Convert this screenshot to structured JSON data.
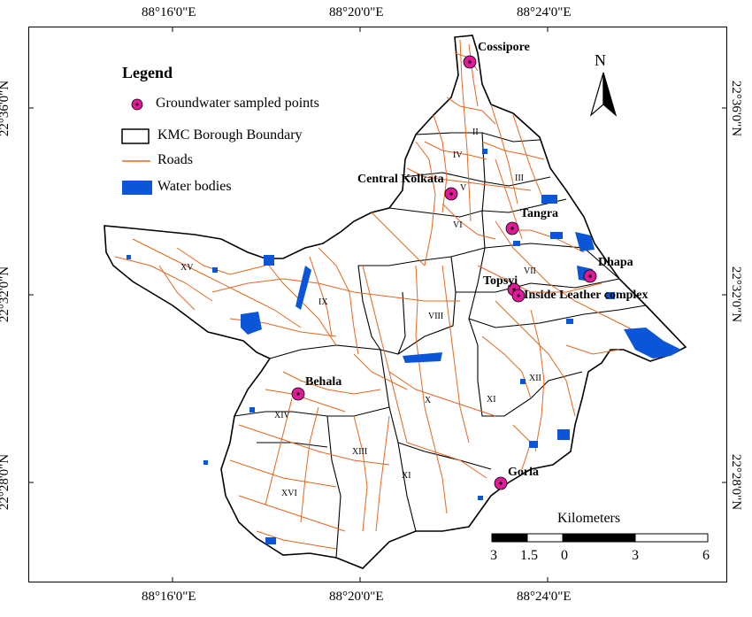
{
  "coords": {
    "top": [
      "88°16'0\"E",
      "88°20'0\"E",
      "88°24'0\"E"
    ],
    "bottom": [
      "88°16'0\"E",
      "88°20'0\"E",
      "88°24'0\"E"
    ],
    "left": [
      "22°36'0\"N",
      "22°32'0\"N",
      "22°28'0\"N"
    ],
    "right": [
      "22°36'0\"N",
      "22°32'0\"N",
      "22°28'0\"N"
    ]
  },
  "legend": {
    "title": "Legend",
    "items": [
      {
        "label": "Groundwater sampled points",
        "symbol": "sample-point"
      },
      {
        "label": "KMC Borough Boundary",
        "symbol": "boundary"
      },
      {
        "label": "Roads",
        "symbol": "road"
      },
      {
        "label": "Water bodies",
        "symbol": "water"
      }
    ]
  },
  "north": "N",
  "sites": [
    {
      "name": "Cossipore"
    },
    {
      "name": "Central Kolkata"
    },
    {
      "name": "Tangra"
    },
    {
      "name": "Dhapa"
    },
    {
      "name": "Topsyi"
    },
    {
      "name": "Inside Leather complex"
    },
    {
      "name": "Behala"
    },
    {
      "name": "Goria"
    }
  ],
  "wards": [
    "II",
    "IV",
    "III",
    "V",
    "VI",
    "VII",
    "VIII",
    "IX",
    "XV",
    "X",
    "XI",
    "XII",
    "XIII",
    "XIV",
    "XVI",
    "XI"
  ],
  "scale": {
    "title": "Kilometers",
    "ticks": [
      "3",
      "1.5",
      "0",
      "3",
      "6"
    ]
  },
  "colors": {
    "roads": "#e5671e",
    "water": "#0b56d8",
    "sample_point": "#e0189a",
    "boundary": "#000000"
  }
}
